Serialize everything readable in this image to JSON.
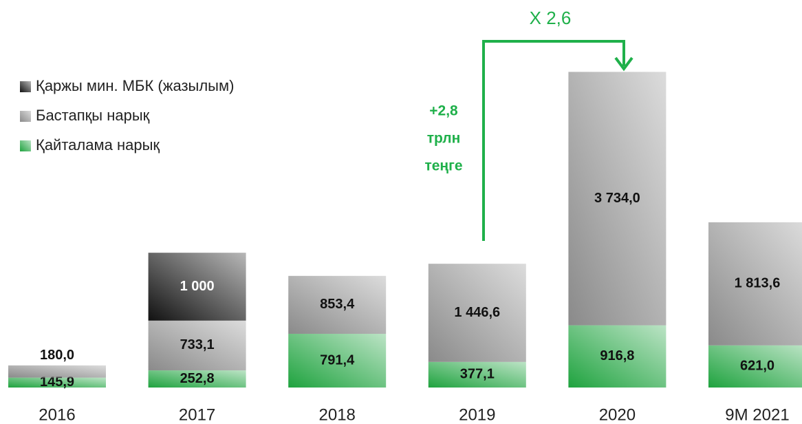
{
  "chart_data": {
    "type": "stacked_bar",
    "categories": [
      "2016",
      "2017",
      "2018",
      "2019",
      "2020",
      "9M 2021"
    ],
    "series": [
      {
        "name": "Қаржы мин. МБК (жазылым)",
        "color": "#111111",
        "values": [
          null,
          1000,
          null,
          null,
          null,
          null
        ],
        "value_labels": [
          null,
          "1 000",
          null,
          null,
          null,
          null
        ]
      },
      {
        "name": "Бастапқы нарық",
        "color": "#8a8a8a",
        "values": [
          180.0,
          733.1,
          853.4,
          1446.6,
          3734.0,
          1813.6
        ],
        "value_labels": [
          "180,0",
          "733,1",
          "853,4",
          "1 446,6",
          "3 734,0",
          "1 813,6"
        ]
      },
      {
        "name": "Қайталама нарық",
        "color": "#1fa33f",
        "values": [
          145.9,
          252.8,
          791.4,
          377.1,
          916.8,
          621.0
        ],
        "value_labels": [
          "145,9",
          "252,8",
          "791,4",
          "377,1",
          "916,8",
          "621,0"
        ]
      }
    ],
    "ylim": [
      0,
      5000
    ],
    "annotations": [
      [
        "+2,8",
        "трлн",
        "теңге"
      ],
      "X 2,6"
    ]
  }
}
